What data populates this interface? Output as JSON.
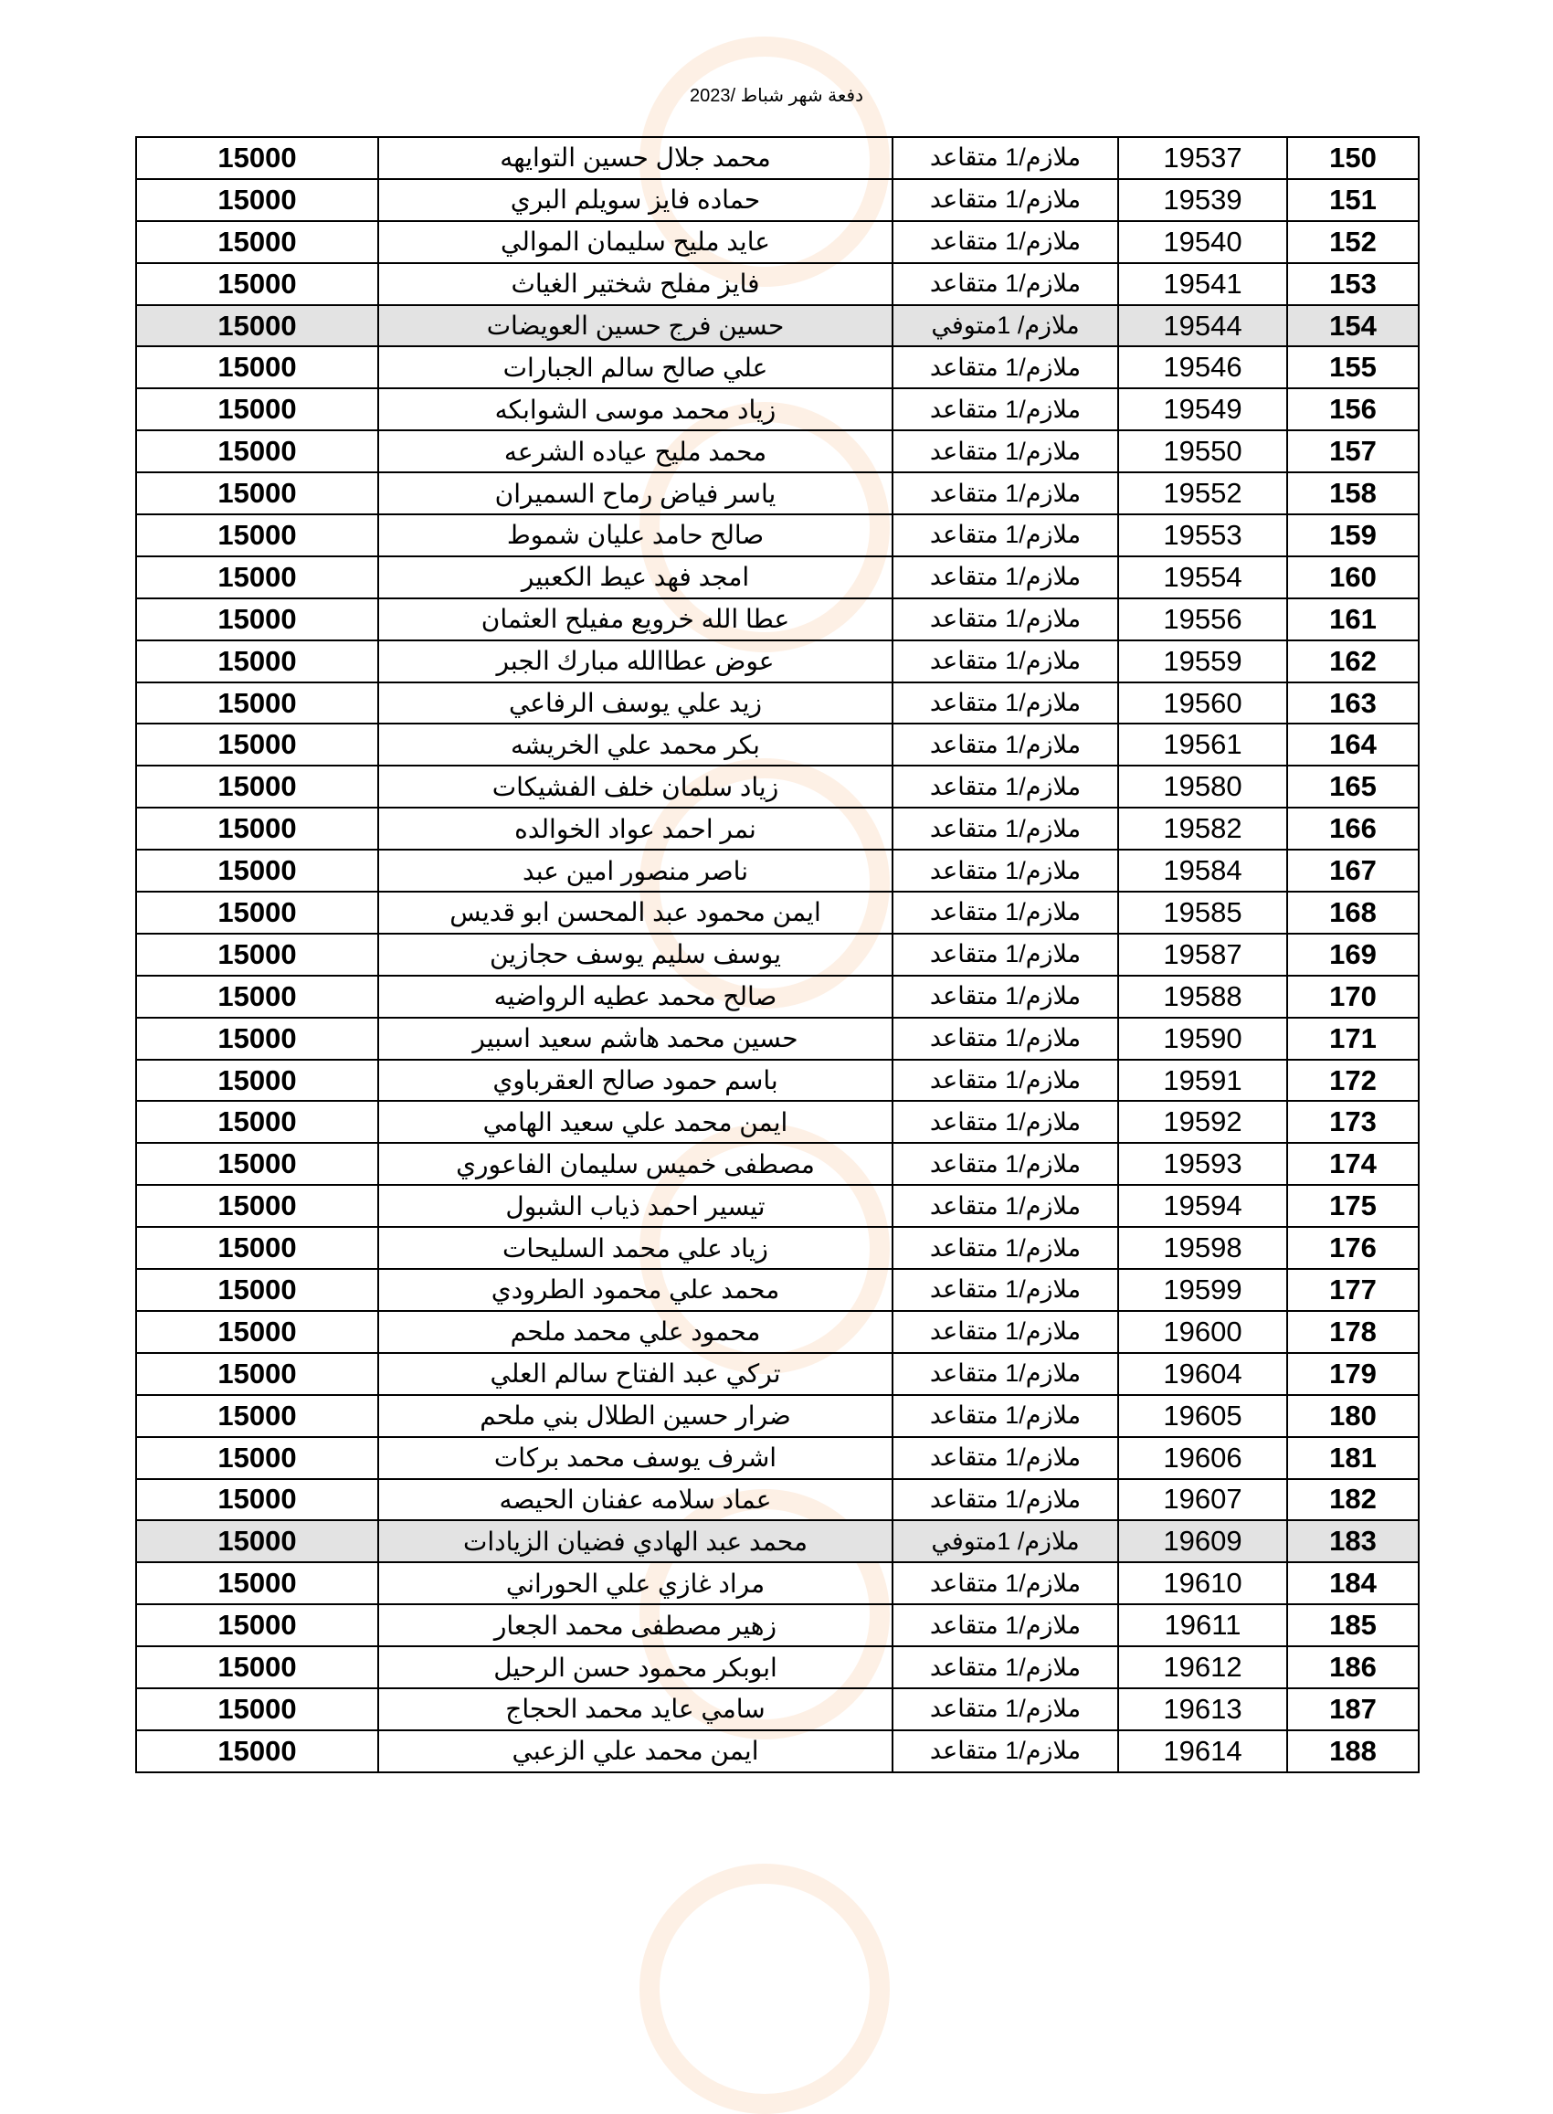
{
  "document": {
    "title": "دفعة شهر شباط /2023",
    "highlight_color": "#e3e3e3",
    "rows": [
      {
        "num": "150",
        "id": "19537",
        "rank": "ملازم/1 متقاعد",
        "name": "محمد جلال حسين التوايهه",
        "amount": "15000"
      },
      {
        "num": "151",
        "id": "19539",
        "rank": "ملازم/1 متقاعد",
        "name": "حماده فايز سويلم البري",
        "amount": "15000"
      },
      {
        "num": "152",
        "id": "19540",
        "rank": "ملازم/1 متقاعد",
        "name": "عايد مليح سليمان الموالي",
        "amount": "15000"
      },
      {
        "num": "153",
        "id": "19541",
        "rank": "ملازم/1 متقاعد",
        "name": "فايز مفلح شختير الغياث",
        "amount": "15000"
      },
      {
        "num": "154",
        "id": "19544",
        "rank": "ملازم/ 1متوفي",
        "name": "حسين فرج حسين العويضات",
        "amount": "15000",
        "highlight": true
      },
      {
        "num": "155",
        "id": "19546",
        "rank": "ملازم/1 متقاعد",
        "name": "علي صالح سالم الجبارات",
        "amount": "15000"
      },
      {
        "num": "156",
        "id": "19549",
        "rank": "ملازم/1 متقاعد",
        "name": "زياد محمد موسى الشوابكه",
        "amount": "15000"
      },
      {
        "num": "157",
        "id": "19550",
        "rank": "ملازم/1 متقاعد",
        "name": "محمد مليح عياده الشرعه",
        "amount": "15000"
      },
      {
        "num": "158",
        "id": "19552",
        "rank": "ملازم/1 متقاعد",
        "name": "ياسر فياض رماح السميران",
        "amount": "15000"
      },
      {
        "num": "159",
        "id": "19553",
        "rank": "ملازم/1 متقاعد",
        "name": "صالح حامد عليان شموط",
        "amount": "15000"
      },
      {
        "num": "160",
        "id": "19554",
        "rank": "ملازم/1 متقاعد",
        "name": "امجد فهد عيط الكعبير",
        "amount": "15000"
      },
      {
        "num": "161",
        "id": "19556",
        "rank": "ملازم/1 متقاعد",
        "name": "عطا الله خرويع مفيلح العثمان",
        "amount": "15000"
      },
      {
        "num": "162",
        "id": "19559",
        "rank": "ملازم/1 متقاعد",
        "name": "عوض عطاالله مبارك الجبر",
        "amount": "15000"
      },
      {
        "num": "163",
        "id": "19560",
        "rank": "ملازم/1 متقاعد",
        "name": "زيد علي يوسف الرفاعي",
        "amount": "15000"
      },
      {
        "num": "164",
        "id": "19561",
        "rank": "ملازم/1 متقاعد",
        "name": "بكر محمد علي الخريشه",
        "amount": "15000"
      },
      {
        "num": "165",
        "id": "19580",
        "rank": "ملازم/1 متقاعد",
        "name": "زياد سلمان خلف الفشيكات",
        "amount": "15000"
      },
      {
        "num": "166",
        "id": "19582",
        "rank": "ملازم/1 متقاعد",
        "name": "نمر احمد عواد الخوالده",
        "amount": "15000"
      },
      {
        "num": "167",
        "id": "19584",
        "rank": "ملازم/1 متقاعد",
        "name": "ناصر منصور امين عبد",
        "amount": "15000"
      },
      {
        "num": "168",
        "id": "19585",
        "rank": "ملازم/1 متقاعد",
        "name": "ايمن محمود عبد المحسن ابو قديس",
        "amount": "15000"
      },
      {
        "num": "169",
        "id": "19587",
        "rank": "ملازم/1 متقاعد",
        "name": "يوسف سليم يوسف حجازين",
        "amount": "15000"
      },
      {
        "num": "170",
        "id": "19588",
        "rank": "ملازم/1 متقاعد",
        "name": "صالح محمد عطيه الرواضيه",
        "amount": "15000"
      },
      {
        "num": "171",
        "id": "19590",
        "rank": "ملازم/1 متقاعد",
        "name": "حسين محمد هاشم سعيد اسبير",
        "amount": "15000"
      },
      {
        "num": "172",
        "id": "19591",
        "rank": "ملازم/1 متقاعد",
        "name": "باسم حمود صالح العقرباوي",
        "amount": "15000"
      },
      {
        "num": "173",
        "id": "19592",
        "rank": "ملازم/1 متقاعد",
        "name": "ايمن محمد علي سعيد الهامي",
        "amount": "15000"
      },
      {
        "num": "174",
        "id": "19593",
        "rank": "ملازم/1 متقاعد",
        "name": "مصطفى خميس سليمان الفاعوري",
        "amount": "15000"
      },
      {
        "num": "175",
        "id": "19594",
        "rank": "ملازم/1 متقاعد",
        "name": "تيسير احمد ذياب الشبول",
        "amount": "15000"
      },
      {
        "num": "176",
        "id": "19598",
        "rank": "ملازم/1 متقاعد",
        "name": "زياد علي محمد السليحات",
        "amount": "15000"
      },
      {
        "num": "177",
        "id": "19599",
        "rank": "ملازم/1 متقاعد",
        "name": "محمد علي محمود الطرودي",
        "amount": "15000"
      },
      {
        "num": "178",
        "id": "19600",
        "rank": "ملازم/1 متقاعد",
        "name": "محمود علي محمد ملحم",
        "amount": "15000"
      },
      {
        "num": "179",
        "id": "19604",
        "rank": "ملازم/1 متقاعد",
        "name": "تركي عبد الفتاح سالم العلي",
        "amount": "15000"
      },
      {
        "num": "180",
        "id": "19605",
        "rank": "ملازم/1 متقاعد",
        "name": "ضرار حسين الطلال بني ملحم",
        "amount": "15000"
      },
      {
        "num": "181",
        "id": "19606",
        "rank": "ملازم/1 متقاعد",
        "name": "اشرف يوسف محمد بركات",
        "amount": "15000"
      },
      {
        "num": "182",
        "id": "19607",
        "rank": "ملازم/1 متقاعد",
        "name": "عماد سلامه عفنان الحيصه",
        "amount": "15000"
      },
      {
        "num": "183",
        "id": "19609",
        "rank": "ملازم/ 1متوفي",
        "name": "محمد عبد الهادي فضيان الزيادات",
        "amount": "15000",
        "highlight": true
      },
      {
        "num": "184",
        "id": "19610",
        "rank": "ملازم/1 متقاعد",
        "name": "مراد غازي علي الحوراني",
        "amount": "15000"
      },
      {
        "num": "185",
        "id": "19611",
        "rank": "ملازم/1 متقاعد",
        "name": "زهير مصطفى محمد الجعار",
        "amount": "15000"
      },
      {
        "num": "186",
        "id": "19612",
        "rank": "ملازم/1 متقاعد",
        "name": "ابوبكر محمود حسن الرحيل",
        "amount": "15000"
      },
      {
        "num": "187",
        "id": "19613",
        "rank": "ملازم/1 متقاعد",
        "name": "سامي عايد محمد الحجاج",
        "amount": "15000"
      },
      {
        "num": "188",
        "id": "19614",
        "rank": "ملازم/1 متقاعد",
        "name": "ايمن محمد علي الزعبي",
        "amount": "15000"
      }
    ]
  }
}
